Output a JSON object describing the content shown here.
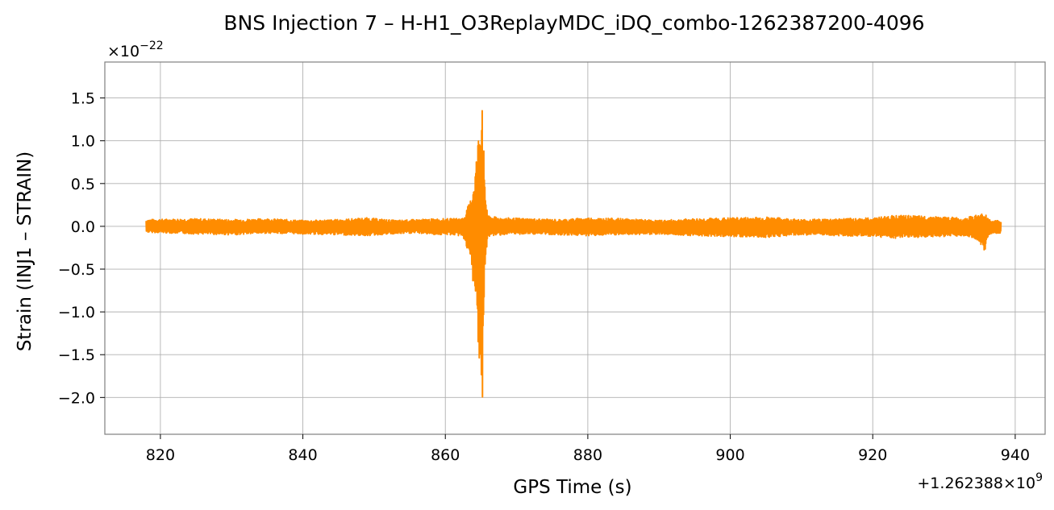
{
  "chart_data": {
    "type": "line",
    "title": "BNS Injection 7 – H-H1_O3ReplayMDC_iDQ_combo-1262387200-4096",
    "xlabel": "GPS Time (s)",
    "ylabel": "Strain (INJ1 – STRAIN)",
    "x_offset_text": "+1.262388×10",
    "x_offset_exponent": "9",
    "y_scale_text": "×10",
    "y_scale_exponent": "−22",
    "xlim": [
      812.2,
      944.2
    ],
    "ylim": [
      -2.43,
      1.92
    ],
    "x_ticks": [
      820,
      840,
      860,
      880,
      900,
      920,
      940
    ],
    "x_tick_labels": [
      "820",
      "840",
      "860",
      "880",
      "900",
      "920",
      "940"
    ],
    "y_ticks": [
      1.5,
      1.0,
      0.5,
      0.0,
      -0.5,
      -1.0,
      -1.5,
      -2.0
    ],
    "y_tick_labels": [
      "1.5",
      "1.0",
      "0.5",
      "0.0",
      "−0.5",
      "−1.0",
      "−1.5",
      "−2.0"
    ],
    "grid": true,
    "legend": "none",
    "series": [
      {
        "color": "#ff8c00",
        "x_range": [
          818.0,
          938.0
        ],
        "envelope": {
          "x": [
            818.0,
            825.0,
            830.0,
            835.0,
            840.0,
            845.0,
            849.0,
            853.0,
            856.0,
            859.0,
            861.0,
            862.5,
            863.5,
            864.2,
            864.7,
            865.0,
            865.2,
            865.5,
            866.0,
            868.0,
            872.0,
            876.0,
            880.0,
            885.0,
            890.0,
            895.0,
            900.0,
            905.0,
            910.0,
            915.0,
            920.0,
            923.0,
            927.0,
            930.0,
            933.0,
            935.0,
            935.8,
            936.0,
            936.3,
            937.0,
            938.0
          ],
          "upper": [
            0.08,
            0.09,
            0.08,
            0.09,
            0.07,
            0.08,
            0.1,
            0.07,
            0.08,
            0.09,
            0.09,
            0.1,
            0.3,
            0.7,
            1.15,
            1.55,
            1.77,
            0.5,
            0.12,
            0.1,
            0.09,
            0.08,
            0.1,
            0.09,
            0.07,
            0.09,
            0.1,
            0.11,
            0.08,
            0.09,
            0.1,
            0.13,
            0.12,
            0.11,
            0.1,
            0.14,
            0.17,
            0.1,
            0.08,
            0.07,
            0.07
          ],
          "lower": [
            -0.07,
            -0.09,
            -0.1,
            -0.08,
            -0.09,
            -0.1,
            -0.11,
            -0.09,
            -0.08,
            -0.1,
            -0.1,
            -0.12,
            -0.4,
            -0.9,
            -1.45,
            -1.9,
            -2.23,
            -0.6,
            -0.12,
            -0.1,
            -0.09,
            -0.1,
            -0.11,
            -0.1,
            -0.09,
            -0.11,
            -0.12,
            -0.13,
            -0.1,
            -0.11,
            -0.12,
            -0.14,
            -0.13,
            -0.12,
            -0.11,
            -0.18,
            -0.31,
            -0.15,
            -0.1,
            -0.08,
            -0.08
          ]
        }
      }
    ]
  }
}
